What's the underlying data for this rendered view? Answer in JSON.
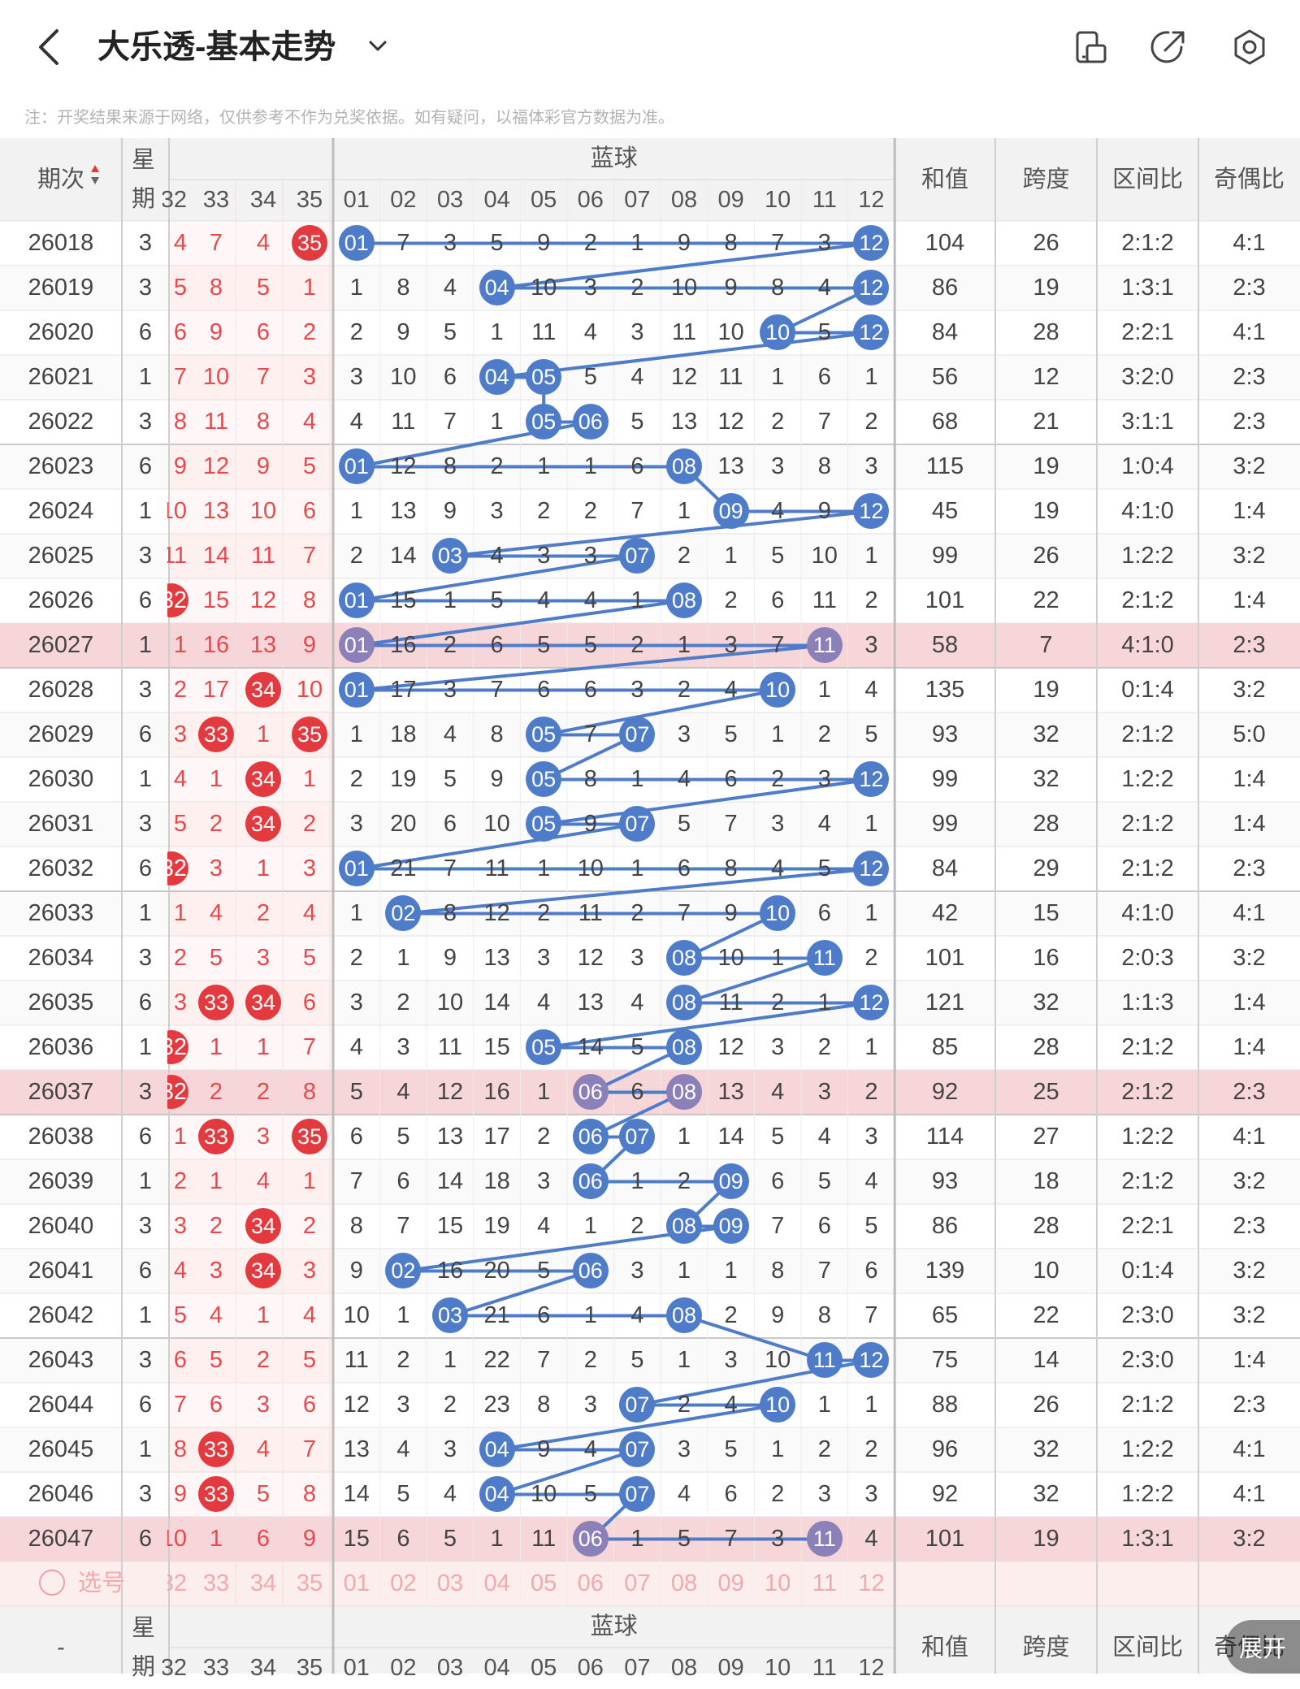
{
  "header": {
    "title": "大乐透-基本走势",
    "note": "注：开奖结果来源于网络，仅供参考不作为兑奖依据。如有疑问，以福体彩官方数据为准。",
    "icons": [
      "back-arrow-icon",
      "chevron-down-icon",
      "tablet-icon",
      "share-icon",
      "settings-icon"
    ]
  },
  "table": {
    "col_period": "期次",
    "col_week": "星期",
    "blue_group": "蓝球",
    "col_sum": "和值",
    "col_span": "跨度",
    "col_zone": "区间比",
    "col_oddeven": "奇偶比",
    "front_nums": [
      "32",
      "33",
      "34",
      "35"
    ],
    "blue_nums": [
      "01",
      "02",
      "03",
      "04",
      "05",
      "06",
      "07",
      "08",
      "09",
      "10",
      "11",
      "12"
    ],
    "select_label": "选号",
    "footer_period": "-",
    "expand_label": "展开",
    "rows": [
      {
        "p": "26018",
        "w": "3",
        "f": [
          "4",
          "7",
          "4",
          "35"
        ],
        "fr": [
          3
        ],
        "b": [
          "01",
          "7",
          "3",
          "5",
          "9",
          "2",
          "1",
          "9",
          "8",
          "7",
          "3",
          "12"
        ],
        "bh": [
          0,
          11
        ],
        "sum": "104",
        "span": "26",
        "zone": "2:1:2",
        "oe": "4:1",
        "hl": false
      },
      {
        "p": "26019",
        "w": "3",
        "f": [
          "5",
          "8",
          "5",
          "1"
        ],
        "fr": [],
        "b": [
          "1",
          "8",
          "4",
          "04",
          "10",
          "3",
          "2",
          "10",
          "9",
          "8",
          "4",
          "12"
        ],
        "bh": [
          3,
          11
        ],
        "sum": "86",
        "span": "19",
        "zone": "1:3:1",
        "oe": "2:3",
        "hl": false
      },
      {
        "p": "26020",
        "w": "6",
        "f": [
          "6",
          "9",
          "6",
          "2"
        ],
        "fr": [],
        "b": [
          "2",
          "9",
          "5",
          "1",
          "11",
          "4",
          "3",
          "11",
          "10",
          "10",
          "5",
          "12"
        ],
        "bh": [
          9,
          11
        ],
        "sum": "84",
        "span": "28",
        "zone": "2:2:1",
        "oe": "4:1",
        "hl": false
      },
      {
        "p": "26021",
        "w": "1",
        "f": [
          "7",
          "10",
          "7",
          "3"
        ],
        "fr": [],
        "b": [
          "3",
          "10",
          "6",
          "04",
          "05",
          "5",
          "4",
          "12",
          "11",
          "1",
          "6",
          "1"
        ],
        "bh": [
          3,
          4
        ],
        "sum": "56",
        "span": "12",
        "zone": "3:2:0",
        "oe": "2:3",
        "hl": false
      },
      {
        "p": "26022",
        "w": "3",
        "f": [
          "8",
          "11",
          "8",
          "4"
        ],
        "fr": [],
        "b": [
          "4",
          "11",
          "7",
          "1",
          "05",
          "06",
          "5",
          "13",
          "12",
          "2",
          "7",
          "2"
        ],
        "bh": [
          4,
          5
        ],
        "sum": "68",
        "span": "21",
        "zone": "3:1:1",
        "oe": "2:3",
        "hl": false
      },
      {
        "p": "26023",
        "w": "6",
        "f": [
          "9",
          "12",
          "9",
          "5"
        ],
        "fr": [],
        "b": [
          "01",
          "12",
          "8",
          "2",
          "1",
          "1",
          "6",
          "08",
          "13",
          "3",
          "8",
          "3"
        ],
        "bh": [
          0,
          7
        ],
        "sum": "115",
        "span": "19",
        "zone": "1:0:4",
        "oe": "3:2",
        "hl": false
      },
      {
        "p": "26024",
        "w": "1",
        "f": [
          "10",
          "13",
          "10",
          "6"
        ],
        "fr": [],
        "b": [
          "1",
          "13",
          "9",
          "3",
          "2",
          "2",
          "7",
          "1",
          "09",
          "4",
          "9",
          "12"
        ],
        "bh": [
          8,
          11
        ],
        "sum": "45",
        "span": "19",
        "zone": "4:1:0",
        "oe": "1:4",
        "hl": false
      },
      {
        "p": "26025",
        "w": "3",
        "f": [
          "11",
          "14",
          "11",
          "7"
        ],
        "fr": [],
        "b": [
          "2",
          "14",
          "03",
          "4",
          "3",
          "3",
          "07",
          "2",
          "1",
          "5",
          "10",
          "1"
        ],
        "bh": [
          2,
          6
        ],
        "sum": "99",
        "span": "26",
        "zone": "1:2:2",
        "oe": "3:2",
        "hl": false
      },
      {
        "p": "26026",
        "w": "6",
        "f": [
          "32",
          "15",
          "12",
          "8"
        ],
        "fr": [
          0
        ],
        "b": [
          "01",
          "15",
          "1",
          "5",
          "4",
          "4",
          "1",
          "08",
          "2",
          "6",
          "11",
          "2"
        ],
        "bh": [
          0,
          7
        ],
        "sum": "101",
        "span": "22",
        "zone": "2:1:2",
        "oe": "1:4",
        "hl": false
      },
      {
        "p": "26027",
        "w": "1",
        "f": [
          "1",
          "16",
          "13",
          "9"
        ],
        "fr": [],
        "b": [
          "01",
          "16",
          "2",
          "6",
          "5",
          "5",
          "2",
          "1",
          "3",
          "7",
          "11",
          "3"
        ],
        "bh": [
          0,
          10
        ],
        "sum": "58",
        "span": "7",
        "zone": "4:1:0",
        "oe": "2:3",
        "hl": true
      },
      {
        "p": "26028",
        "w": "3",
        "f": [
          "2",
          "17",
          "34",
          "10"
        ],
        "fr": [
          2
        ],
        "b": [
          "01",
          "17",
          "3",
          "7",
          "6",
          "6",
          "3",
          "2",
          "4",
          "10",
          "1",
          "4"
        ],
        "bh": [
          0,
          9
        ],
        "sum": "135",
        "span": "19",
        "zone": "0:1:4",
        "oe": "3:2",
        "hl": false
      },
      {
        "p": "26029",
        "w": "6",
        "f": [
          "3",
          "33",
          "1",
          "35"
        ],
        "fr": [
          1,
          3
        ],
        "b": [
          "1",
          "18",
          "4",
          "8",
          "05",
          "7",
          "07",
          "3",
          "5",
          "1",
          "2",
          "5"
        ],
        "bh": [
          4,
          6
        ],
        "sum": "93",
        "span": "32",
        "zone": "2:1:2",
        "oe": "5:0",
        "hl": false
      },
      {
        "p": "26030",
        "w": "1",
        "f": [
          "4",
          "1",
          "34",
          "1"
        ],
        "fr": [
          2
        ],
        "b": [
          "2",
          "19",
          "5",
          "9",
          "05",
          "8",
          "1",
          "4",
          "6",
          "2",
          "3",
          "12"
        ],
        "bh": [
          4,
          11
        ],
        "sum": "99",
        "span": "32",
        "zone": "1:2:2",
        "oe": "1:4",
        "hl": false
      },
      {
        "p": "26031",
        "w": "3",
        "f": [
          "5",
          "2",
          "34",
          "2"
        ],
        "fr": [
          2
        ],
        "b": [
          "3",
          "20",
          "6",
          "10",
          "05",
          "9",
          "07",
          "5",
          "7",
          "3",
          "4",
          "1"
        ],
        "bh": [
          4,
          6
        ],
        "sum": "99",
        "span": "28",
        "zone": "2:1:2",
        "oe": "1:4",
        "hl": false
      },
      {
        "p": "26032",
        "w": "6",
        "f": [
          "32",
          "3",
          "1",
          "3"
        ],
        "fr": [
          0
        ],
        "b": [
          "01",
          "21",
          "7",
          "11",
          "1",
          "10",
          "1",
          "6",
          "8",
          "4",
          "5",
          "12"
        ],
        "bh": [
          0,
          11
        ],
        "sum": "84",
        "span": "29",
        "zone": "2:1:2",
        "oe": "2:3",
        "hl": false
      },
      {
        "p": "26033",
        "w": "1",
        "f": [
          "1",
          "4",
          "2",
          "4"
        ],
        "fr": [],
        "b": [
          "1",
          "02",
          "8",
          "12",
          "2",
          "11",
          "2",
          "7",
          "9",
          "10",
          "6",
          "1"
        ],
        "bh": [
          1,
          9
        ],
        "sum": "42",
        "span": "15",
        "zone": "4:1:0",
        "oe": "4:1",
        "hl": false
      },
      {
        "p": "26034",
        "w": "3",
        "f": [
          "2",
          "5",
          "3",
          "5"
        ],
        "fr": [],
        "b": [
          "2",
          "1",
          "9",
          "13",
          "3",
          "12",
          "3",
          "08",
          "10",
          "1",
          "11",
          "2"
        ],
        "bh": [
          7,
          10
        ],
        "sum": "101",
        "span": "16",
        "zone": "2:0:3",
        "oe": "3:2",
        "hl": false
      },
      {
        "p": "26035",
        "w": "6",
        "f": [
          "3",
          "33",
          "34",
          "6"
        ],
        "fr": [
          1,
          2
        ],
        "b": [
          "3",
          "2",
          "10",
          "14",
          "4",
          "13",
          "4",
          "08",
          "11",
          "2",
          "1",
          "12"
        ],
        "bh": [
          7,
          11
        ],
        "sum": "121",
        "span": "32",
        "zone": "1:1:3",
        "oe": "1:4",
        "hl": false
      },
      {
        "p": "26036",
        "w": "1",
        "f": [
          "32",
          "1",
          "1",
          "7"
        ],
        "fr": [
          0
        ],
        "b": [
          "4",
          "3",
          "11",
          "15",
          "05",
          "14",
          "5",
          "08",
          "12",
          "3",
          "2",
          "1"
        ],
        "bh": [
          4,
          7
        ],
        "sum": "85",
        "span": "28",
        "zone": "2:1:2",
        "oe": "1:4",
        "hl": false
      },
      {
        "p": "26037",
        "w": "3",
        "f": [
          "32",
          "2",
          "2",
          "8"
        ],
        "fr": [
          0
        ],
        "b": [
          "5",
          "4",
          "12",
          "16",
          "1",
          "06",
          "6",
          "08",
          "13",
          "4",
          "3",
          "2"
        ],
        "bh": [
          5,
          7
        ],
        "sum": "92",
        "span": "25",
        "zone": "2:1:2",
        "oe": "2:3",
        "hl": true
      },
      {
        "p": "26038",
        "w": "6",
        "f": [
          "1",
          "33",
          "3",
          "35"
        ],
        "fr": [
          1,
          3
        ],
        "b": [
          "6",
          "5",
          "13",
          "17",
          "2",
          "06",
          "07",
          "1",
          "14",
          "5",
          "4",
          "3"
        ],
        "bh": [
          5,
          6
        ],
        "sum": "114",
        "span": "27",
        "zone": "1:2:2",
        "oe": "4:1",
        "hl": false
      },
      {
        "p": "26039",
        "w": "1",
        "f": [
          "2",
          "1",
          "4",
          "1"
        ],
        "fr": [],
        "b": [
          "7",
          "6",
          "14",
          "18",
          "3",
          "06",
          "1",
          "2",
          "09",
          "6",
          "5",
          "4"
        ],
        "bh": [
          5,
          8
        ],
        "sum": "93",
        "span": "18",
        "zone": "2:1:2",
        "oe": "3:2",
        "hl": false
      },
      {
        "p": "26040",
        "w": "3",
        "f": [
          "3",
          "2",
          "34",
          "2"
        ],
        "fr": [
          2
        ],
        "b": [
          "8",
          "7",
          "15",
          "19",
          "4",
          "1",
          "2",
          "08",
          "09",
          "7",
          "6",
          "5"
        ],
        "bh": [
          7,
          8
        ],
        "sum": "86",
        "span": "28",
        "zone": "2:2:1",
        "oe": "2:3",
        "hl": false
      },
      {
        "p": "26041",
        "w": "6",
        "f": [
          "4",
          "3",
          "34",
          "3"
        ],
        "fr": [
          2
        ],
        "b": [
          "9",
          "02",
          "16",
          "20",
          "5",
          "06",
          "3",
          "1",
          "1",
          "8",
          "7",
          "6"
        ],
        "bh": [
          1,
          5
        ],
        "sum": "139",
        "span": "10",
        "zone": "0:1:4",
        "oe": "3:2",
        "hl": false
      },
      {
        "p": "26042",
        "w": "1",
        "f": [
          "5",
          "4",
          "1",
          "4"
        ],
        "fr": [],
        "b": [
          "10",
          "1",
          "03",
          "21",
          "6",
          "1",
          "4",
          "08",
          "2",
          "9",
          "8",
          "7"
        ],
        "bh": [
          2,
          7
        ],
        "sum": "65",
        "span": "22",
        "zone": "2:3:0",
        "oe": "3:2",
        "hl": false
      },
      {
        "p": "26043",
        "w": "3",
        "f": [
          "6",
          "5",
          "2",
          "5"
        ],
        "fr": [],
        "b": [
          "11",
          "2",
          "1",
          "22",
          "7",
          "2",
          "5",
          "1",
          "3",
          "10",
          "11",
          "12"
        ],
        "bh": [
          10,
          11
        ],
        "sum": "75",
        "span": "14",
        "zone": "2:3:0",
        "oe": "1:4",
        "hl": false
      },
      {
        "p": "26044",
        "w": "6",
        "f": [
          "7",
          "6",
          "3",
          "6"
        ],
        "fr": [],
        "b": [
          "12",
          "3",
          "2",
          "23",
          "8",
          "3",
          "07",
          "2",
          "4",
          "10",
          "1",
          "1"
        ],
        "bh": [
          6,
          9
        ],
        "sum": "88",
        "span": "26",
        "zone": "2:1:2",
        "oe": "2:3",
        "hl": false
      },
      {
        "p": "26045",
        "w": "1",
        "f": [
          "8",
          "33",
          "4",
          "7"
        ],
        "fr": [
          1
        ],
        "b": [
          "13",
          "4",
          "3",
          "04",
          "9",
          "4",
          "07",
          "3",
          "5",
          "1",
          "2",
          "2"
        ],
        "bh": [
          3,
          6
        ],
        "sum": "96",
        "span": "32",
        "zone": "1:2:2",
        "oe": "4:1",
        "hl": false
      },
      {
        "p": "26046",
        "w": "3",
        "f": [
          "9",
          "33",
          "5",
          "8"
        ],
        "fr": [
          1
        ],
        "b": [
          "14",
          "5",
          "4",
          "04",
          "10",
          "5",
          "07",
          "4",
          "6",
          "2",
          "3",
          "3"
        ],
        "bh": [
          3,
          6
        ],
        "sum": "92",
        "span": "32",
        "zone": "1:2:2",
        "oe": "4:1",
        "hl": false
      },
      {
        "p": "26047",
        "w": "6",
        "f": [
          "10",
          "1",
          "6",
          "9"
        ],
        "fr": [],
        "b": [
          "15",
          "6",
          "5",
          "1",
          "11",
          "06",
          "1",
          "5",
          "7",
          "3",
          "11",
          "4"
        ],
        "bh": [
          5,
          10
        ],
        "sum": "101",
        "span": "19",
        "zone": "1:3:1",
        "oe": "3:2",
        "hl": true
      }
    ]
  }
}
